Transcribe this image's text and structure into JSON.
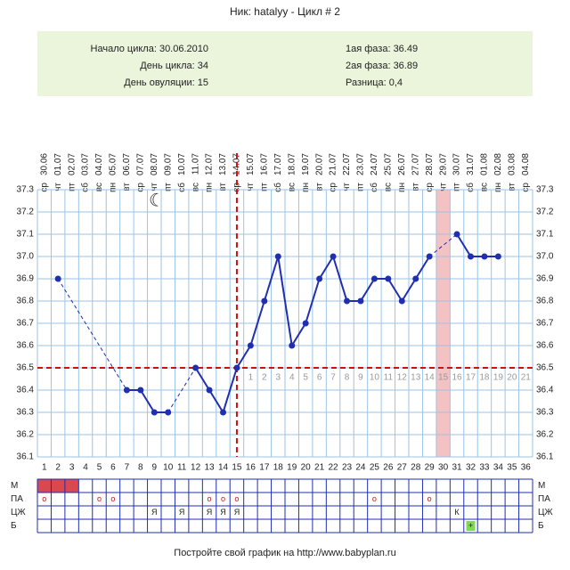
{
  "chart_data": {
    "type": "line",
    "title": "Ник: hatalyy - Цикл # 2",
    "info_left": [
      "Начало цикла: 30.06.2010",
      "День цикла: 34",
      "День овуляции: 15"
    ],
    "info_right": [
      "1ая фаза: 36.49",
      "2ая фаза: 36.89",
      "Разница: 0,4"
    ],
    "dates": [
      "30.06",
      "01.07",
      "02.07",
      "03.07",
      "04.07",
      "05.07",
      "06.07",
      "07.07",
      "08.07",
      "09.07",
      "10.07",
      "11.07",
      "12.07",
      "13.07",
      "14.07",
      "15.07",
      "16.07",
      "17.07",
      "18.07",
      "19.07",
      "20.07",
      "21.07",
      "22.07",
      "23.07",
      "24.07",
      "25.07",
      "26.07",
      "27.07",
      "28.07",
      "29.07",
      "30.07",
      "31.07",
      "01.08",
      "02.08",
      "03.08",
      "04.08"
    ],
    "weekdays": [
      "ср",
      "чт",
      "пт",
      "сб",
      "вс",
      "пн",
      "вт",
      "ср",
      "чт",
      "пт",
      "сб",
      "вс",
      "пн",
      "вт",
      "ср",
      "чт",
      "пт",
      "сб",
      "вс",
      "пн",
      "вт",
      "ср",
      "чт",
      "пт",
      "сб",
      "вс",
      "пн",
      "вт",
      "ср",
      "чт",
      "пт",
      "сб",
      "вс",
      "пн",
      "вт",
      "ср"
    ],
    "x": [
      1,
      2,
      3,
      4,
      5,
      6,
      7,
      8,
      9,
      10,
      11,
      12,
      13,
      14,
      15,
      16,
      17,
      18,
      19,
      20,
      21,
      22,
      23,
      24,
      25,
      26,
      27,
      28,
      29,
      30,
      31,
      32,
      33,
      34
    ],
    "series": [
      {
        "color": "#1f2fb0",
        "values": [
          null,
          36.9,
          null,
          null,
          null,
          null,
          36.4,
          36.4,
          36.3,
          36.3,
          null,
          36.5,
          36.4,
          36.3,
          36.5,
          36.6,
          36.8,
          37.0,
          36.6,
          36.7,
          36.9,
          37.0,
          36.8,
          36.8,
          36.9,
          36.9,
          36.8,
          36.9,
          37.0,
          null,
          37.1,
          37.0,
          37.0,
          37.0
        ]
      }
    ],
    "xlim": [
      0.5,
      36.5
    ],
    "xticks": [
      1,
      2,
      3,
      4,
      5,
      6,
      7,
      8,
      9,
      10,
      11,
      12,
      13,
      14,
      15,
      16,
      17,
      18,
      19,
      20,
      21,
      22,
      23,
      24,
      25,
      26,
      27,
      28,
      29,
      30,
      31,
      32,
      33,
      34,
      35,
      36
    ],
    "ylim": [
      36.1,
      37.3
    ],
    "yticks": [
      36.1,
      36.2,
      36.3,
      36.4,
      36.5,
      36.6,
      36.7,
      36.8,
      36.9,
      {
        "value": 37,
        "label": "37.0"
      },
      37.1,
      37.2,
      37.3
    ],
    "coverline": 36.5,
    "ovulation_day": 15,
    "highlight_day": 30,
    "luteal_day_labels": [
      1,
      2,
      3,
      4,
      5,
      6,
      7,
      8,
      9,
      10,
      11,
      12,
      13,
      14,
      15,
      16,
      17,
      18,
      19,
      20,
      21
    ],
    "rows": [
      {
        "name": "М",
        "fill_days": [
          1,
          2,
          3
        ]
      },
      {
        "name": "ПА",
        "marks": [
          "о",
          null,
          null,
          null,
          "о",
          "о",
          null,
          null,
          null,
          null,
          null,
          null,
          "о",
          "о",
          "о",
          null,
          null,
          null,
          null,
          null,
          null,
          null,
          null,
          null,
          "о",
          null,
          null,
          null,
          "о",
          null,
          null,
          null,
          null,
          null,
          null,
          null
        ]
      },
      {
        "name": "ЦЖ",
        "marks": [
          null,
          null,
          null,
          null,
          null,
          null,
          null,
          null,
          "Я",
          null,
          "Я",
          null,
          "Я",
          "Я",
          "Я",
          null,
          null,
          null,
          null,
          null,
          null,
          null,
          null,
          null,
          null,
          null,
          null,
          null,
          null,
          null,
          "К",
          null,
          null,
          null,
          null,
          null
        ]
      },
      {
        "name": "Б",
        "marks": [
          null,
          null,
          null,
          null,
          null,
          null,
          null,
          null,
          null,
          null,
          null,
          null,
          null,
          null,
          null,
          null,
          null,
          null,
          null,
          null,
          null,
          null,
          null,
          null,
          null,
          null,
          null,
          null,
          null,
          null,
          null,
          "+",
          null,
          null,
          null,
          null
        ]
      }
    ],
    "footer": "Постройте свой график на http://www.babyplan.ru"
  }
}
